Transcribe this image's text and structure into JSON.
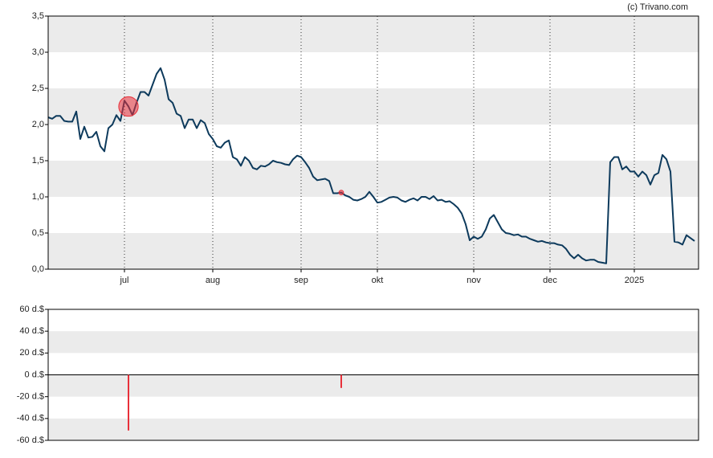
{
  "chart_data": [
    {
      "type": "line",
      "source": "(c) Trivano.com",
      "color": "#0d3a5c",
      "marker_color": "#e8303a",
      "values": [
        2.1,
        2.08,
        2.12,
        2.12,
        2.05,
        2.04,
        2.04,
        2.18,
        1.8,
        1.97,
        1.82,
        1.83,
        1.9,
        1.7,
        1.63,
        1.95,
        2.0,
        2.13,
        2.05,
        2.33,
        2.25,
        2.13,
        2.3,
        2.45,
        2.45,
        2.4,
        2.55,
        2.7,
        2.78,
        2.62,
        2.35,
        2.3,
        2.15,
        2.12,
        1.95,
        2.07,
        2.07,
        1.95,
        2.06,
        2.02,
        1.87,
        1.8,
        1.7,
        1.68,
        1.75,
        1.78,
        1.55,
        1.52,
        1.43,
        1.55,
        1.5,
        1.4,
        1.38,
        1.43,
        1.42,
        1.45,
        1.5,
        1.48,
        1.47,
        1.45,
        1.44,
        1.52,
        1.57,
        1.55,
        1.48,
        1.4,
        1.28,
        1.23,
        1.24,
        1.25,
        1.22,
        1.05,
        1.05,
        1.06,
        1.02,
        1.0,
        0.96,
        0.95,
        0.97,
        1.0,
        1.07,
        1.0,
        0.92,
        0.93,
        0.96,
        0.99,
        1.0,
        0.99,
        0.95,
        0.93,
        0.96,
        0.98,
        0.95,
        1.0,
        1.0,
        0.97,
        1.01,
        0.95,
        0.96,
        0.93,
        0.94,
        0.9,
        0.85,
        0.77,
        0.62,
        0.4,
        0.45,
        0.42,
        0.45,
        0.55,
        0.7,
        0.75,
        0.65,
        0.55,
        0.5,
        0.49,
        0.47,
        0.48,
        0.45,
        0.45,
        0.42,
        0.4,
        0.38,
        0.39,
        0.37,
        0.36,
        0.36,
        0.34,
        0.33,
        0.28,
        0.2,
        0.15,
        0.2,
        0.15,
        0.12,
        0.13,
        0.13,
        0.1,
        0.09,
        0.08,
        1.48,
        1.55,
        1.55,
        1.38,
        1.42,
        1.35,
        1.35,
        1.28,
        1.35,
        1.3,
        1.17,
        1.3,
        1.33,
        1.58,
        1.52,
        1.35,
        0.38,
        0.37,
        0.34,
        0.47,
        0.43,
        0.39
      ],
      "xlim": [
        0,
        162
      ],
      "xticks": [
        {
          "value": 19,
          "label": "jul"
        },
        {
          "value": 41,
          "label": "aug"
        },
        {
          "value": 63,
          "label": "sep"
        },
        {
          "value": 82,
          "label": "okt"
        },
        {
          "value": 106,
          "label": "nov"
        },
        {
          "value": 125,
          "label": "dec"
        },
        {
          "value": 146,
          "label": "2025"
        }
      ],
      "ylim": [
        0,
        3.5
      ],
      "yticks": [
        {
          "value": 0,
          "label": "0,0"
        },
        {
          "value": 0.5,
          "label": "0,5"
        },
        {
          "value": 1,
          "label": "1,0"
        },
        {
          "value": 1.5,
          "label": "1,5"
        },
        {
          "value": 2,
          "label": "2,0"
        },
        {
          "value": 2.5,
          "label": "2,5"
        },
        {
          "value": 3,
          "label": "3,0"
        },
        {
          "value": 3.5,
          "label": "3,5"
        }
      ]
    },
    {
      "type": "bar",
      "color": "#e8303a",
      "x": [
        20,
        73
      ],
      "values": [
        -51,
        -12
      ],
      "xlim": [
        0,
        162
      ],
      "ylim": [
        -60,
        60
      ],
      "yticks": [
        {
          "value": -60,
          "label": "-60 d.$"
        },
        {
          "value": -40,
          "label": "-40 d.$"
        },
        {
          "value": -20,
          "label": "-20 d.$"
        },
        {
          "value": 0,
          "label": "0 d.$"
        },
        {
          "value": 20,
          "label": "20 d.$"
        },
        {
          "value": 40,
          "label": "40 d.$"
        },
        {
          "value": 60,
          "label": "60 d.$"
        }
      ]
    }
  ]
}
